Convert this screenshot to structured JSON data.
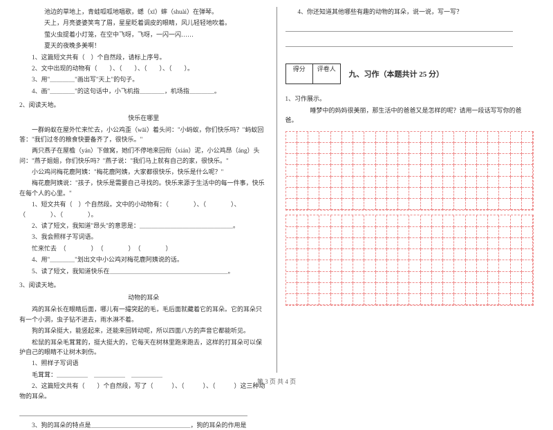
{
  "leftCol": {
    "passage1": {
      "lines": [
        "池边的草地上，青蛙呱呱地唱歌，蟋（xī）蟀（shuài）在弹琴。",
        "天上，月亮婆婆笑弯了眉，星星眨着调皮的眼睛，风儿轻轻地吹着。",
        "萤火虫提着小灯笼，在空中飞呀，飞呀，一闪一闪……",
        "夏天的夜晚多美啊！"
      ],
      "q1": "1、这篇短文共有（　）个自然段，请标上序号。",
      "q2": "2、文中出现的动物有（　　）、（　　）、（　　）、（　　）。",
      "q3a": "3、用\"＿＿＿＿\"画出写\"天上\"的句子。",
      "q4a": "4、画\"＿＿＿＿\"的这句话中，小飞机指＿＿＿＿，机场指＿＿＿＿。"
    },
    "item2": {
      "label": "2、阅读天地。",
      "title": "快乐在哪里",
      "lines": [
        "一群蚂蚁在屋外忙来忙去，小公鸡歪（wāi）着头问：\"小蚂蚁，你们快乐吗？\"蚂蚁回答：\"我们过冬的粮食快要备齐了，很快乐。\"",
        "两只燕子在屋檐（yán）下做窝，她们不停地来回衔（xián）泥，小公鸡昂（áng）头问：\"燕子姐姐，你们快乐吗？\"燕子说：\"我们马上就有自己的家，很快乐。\"",
        "小公鸡问梅花鹿阿姨：\"梅花鹿阿姨，大家都很快乐，快乐是什么呢？\"",
        "梅花鹿阿姨说：\"孩子，快乐是需要自己寻找的。快乐来源于生活中的每一件事，快乐在每个人的心里。\""
      ],
      "q1": "1、短文共有（　）个自然段。文中的小动物有：（　　　　）、（　　　　）、（　　　　）、（　　　　）。",
      "q2": "2、读了短文，我知道\"昂头\"的意思是：＿＿＿＿＿＿＿＿＿＿＿＿＿＿＿。",
      "q3label": "3、我会照样子写词语。",
      "q3ex": "忙来忙去　（　　　　）　（　　　　）　（　　　　）",
      "q4": "4、用\"＿＿＿＿\"划出文中小公鸡对梅花鹿阿姨说的话。",
      "q5": "5、读了短文，我知道快乐在＿＿＿＿＿＿＿＿＿＿＿＿＿＿＿＿＿＿＿。"
    },
    "item3": {
      "label": "3、阅读天地。",
      "title": "动物的耳朵",
      "lines": [
        "鸡的耳朵长在眼睛后面，哪儿有一撮突起的毛，毛后面就藏着它的耳朵。它的耳朵只有一个小洞，虫子钻不进去，雨水淋不着。",
        "狗的耳朵挺大，能竖起来，还能来回转动呢，所以四面八方的声音它都能听见。",
        "松鼠的耳朵毛茸茸的，挺大挺大的，它每天在树林里跑来跑去，这样的打耳朵可以保护自己的眼睛不让树木刺伤。"
      ],
      "q1label": "1、照样子写词语",
      "q1ex": "毛茸茸：＿＿＿＿＿　＿＿＿＿＿　＿＿＿＿＿",
      "q2": "2、这篇短文共有（　　）个自然段，写了（　　　）、（　　　）、（　　　）这三种动物的耳朵。",
      "q3": "3、狗的耳朵的特点是＿＿＿＿＿＿＿＿＿＿＿＿＿＿＿＿，狗的耳朵的作用是"
    }
  },
  "rightCol": {
    "q4": "4、你还知道其他哪些有趣的动物的耳朵，说一说，写一写？",
    "scoreLabels": {
      "l": "得分",
      "r": "评卷人"
    },
    "sectionTitle": "九、习作（本题共计 25 分）",
    "prompt1": "1、习作展示。",
    "prompt2": "睡梦中的妈妈很美丽，那生活中的爸爸又是怎样的呢？请用一段话写写你的爸爸。",
    "grid": {
      "cols": 22,
      "rows1": 7,
      "rows2": 8,
      "borderColor": "#e88888"
    }
  },
  "footer": "第 3 页  共 4 页"
}
